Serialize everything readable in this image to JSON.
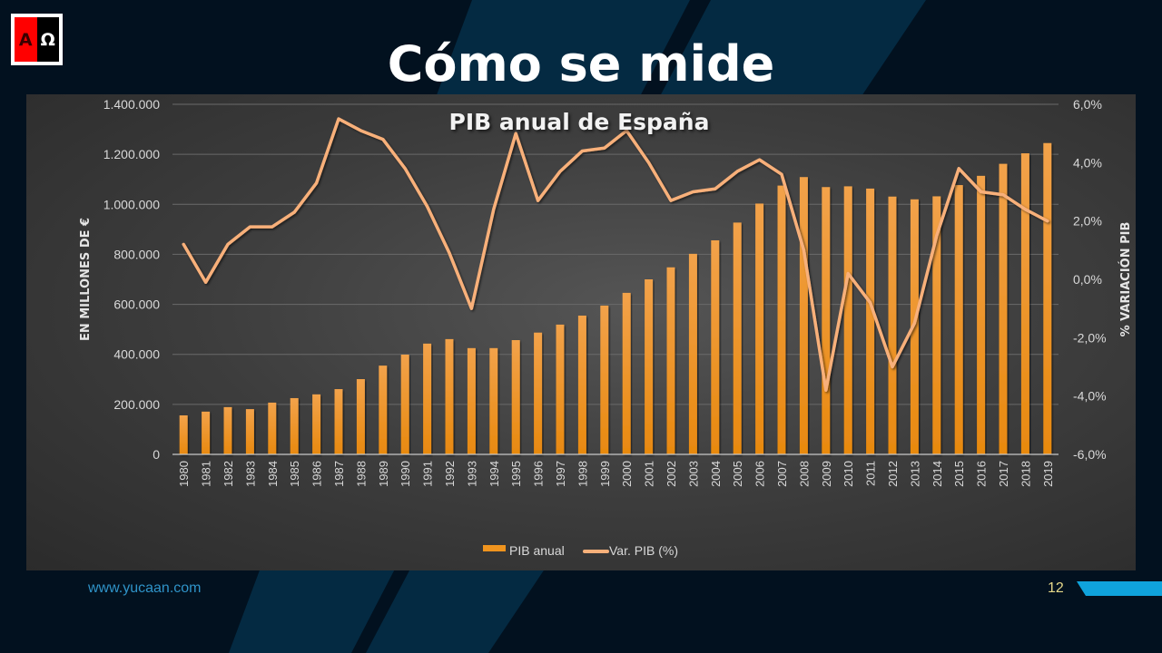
{
  "slide": {
    "title": "Cómo se mide",
    "logo": {
      "left": "Α",
      "right": "Ω"
    },
    "footer": {
      "url": "www.yucaan.com",
      "page_number": "12"
    },
    "colors": {
      "background": "#02111f",
      "accent_shape": "#042a42",
      "footer_bar": "#0fa3dc",
      "bar": "#f0941e",
      "line": "#f8b07a"
    }
  },
  "chart_data": {
    "type": "bar+line",
    "title": "PIB anual de España",
    "xlabel": "",
    "ylabel": "EN MILLONES DE €",
    "y2label": "% VARIACIÓN PIB",
    "ylim": [
      0,
      1400000
    ],
    "y2lim": [
      -6.0,
      6.0
    ],
    "yticks": [
      "0",
      "200.000",
      "400.000",
      "600.000",
      "800.000",
      "1.000.000",
      "1.200.000",
      "1.400.000"
    ],
    "y2ticks": [
      "-6,0%",
      "-4,0%",
      "-2,0%",
      "0,0%",
      "2,0%",
      "4,0%",
      "6,0%"
    ],
    "grid": true,
    "legend_position": "bottom",
    "categories": [
      "1980",
      "1981",
      "1982",
      "1983",
      "1984",
      "1985",
      "1986",
      "1987",
      "1988",
      "1989",
      "1990",
      "1991",
      "1992",
      "1993",
      "1994",
      "1995",
      "1996",
      "1997",
      "1998",
      "1999",
      "2000",
      "2001",
      "2002",
      "2003",
      "2004",
      "2005",
      "2006",
      "2007",
      "2008",
      "2009",
      "2010",
      "2011",
      "2012",
      "2013",
      "2014",
      "2015",
      "2016",
      "2017",
      "2018",
      "2019"
    ],
    "series": [
      {
        "name": "PIB anual",
        "type": "bar",
        "axis": "left",
        "values": [
          156000,
          171000,
          189000,
          181000,
          207000,
          225000,
          240000,
          261000,
          301000,
          355000,
          399000,
          443000,
          461000,
          425000,
          425000,
          457000,
          487000,
          519000,
          555000,
          595000,
          646000,
          700000,
          748000,
          802000,
          856000,
          927000,
          1003000,
          1075000,
          1109000,
          1069000,
          1072000,
          1063000,
          1031000,
          1020000,
          1032000,
          1077000,
          1114000,
          1162000,
          1204000,
          1245000
        ]
      },
      {
        "name": "Var. PIB (%)",
        "type": "line",
        "axis": "right",
        "values": [
          1.2,
          -0.1,
          1.2,
          1.8,
          1.8,
          2.3,
          3.3,
          5.5,
          5.1,
          4.8,
          3.8,
          2.5,
          0.9,
          -1.0,
          2.4,
          5.0,
          2.7,
          3.7,
          4.4,
          4.5,
          5.1,
          4.0,
          2.7,
          3.0,
          3.1,
          3.7,
          4.1,
          3.6,
          1.0,
          -3.8,
          0.2,
          -0.8,
          -3.0,
          -1.5,
          1.5,
          3.8,
          3.0,
          2.9,
          2.4,
          2.0
        ]
      }
    ]
  }
}
